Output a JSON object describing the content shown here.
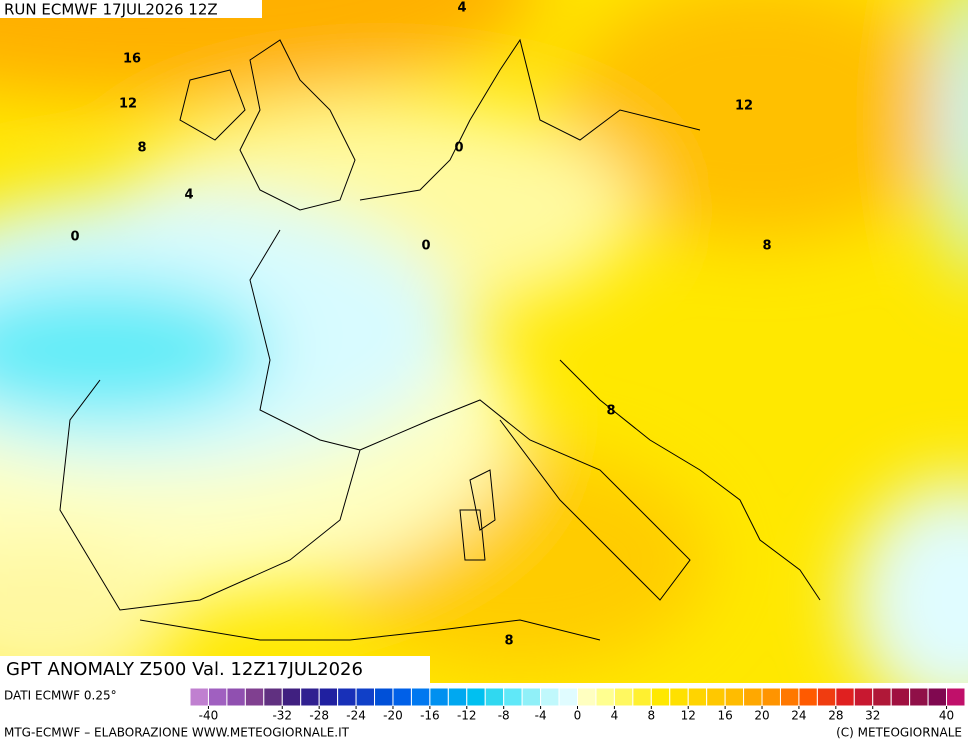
{
  "header": "RUN ECMWF 17JUL2026 12Z",
  "title": "GPT ANOMALY Z500 Val. 12Z17JUL2026",
  "source": "DATI ECMWF 0.25°",
  "footer_left": "MTG-ECMWF – ELABORAZIONE WWW.METEOGIORNALE.IT",
  "footer_right": "(C) METEOGIORNALE",
  "contour_labels": [
    4,
    16,
    12,
    8,
    4,
    0,
    0,
    0,
    12,
    8,
    8,
    8
  ],
  "colorbar": {
    "range": [
      -42,
      42
    ],
    "colors": [
      "#c080d0",
      "#a060c0",
      "#9050b0",
      "#804090",
      "#603080",
      "#402080",
      "#302090",
      "#2020a0",
      "#1830b8",
      "#1040c8",
      "#0050d8",
      "#0060e8",
      "#0078f0",
      "#0090f0",
      "#00a8f0",
      "#00c0f0",
      "#30d8f0",
      "#60e8f8",
      "#90f0f8",
      "#c0f8fc",
      "#e0fcff",
      "#ffffc0",
      "#ffff90",
      "#fff860",
      "#fff030",
      "#ffe800",
      "#ffe000",
      "#ffd400",
      "#ffc800",
      "#ffbc00",
      "#ffa800",
      "#ff9400",
      "#ff7800",
      "#ff5a00",
      "#f03c10",
      "#e02020",
      "#c81830",
      "#b01838",
      "#a01040",
      "#901048",
      "#800850",
      "#c0106a"
    ],
    "ticks": [
      -40,
      -32,
      -28,
      -24,
      -20,
      -16,
      -12,
      -8,
      -4,
      0,
      4,
      8,
      12,
      16,
      20,
      24,
      28,
      32,
      40
    ]
  }
}
